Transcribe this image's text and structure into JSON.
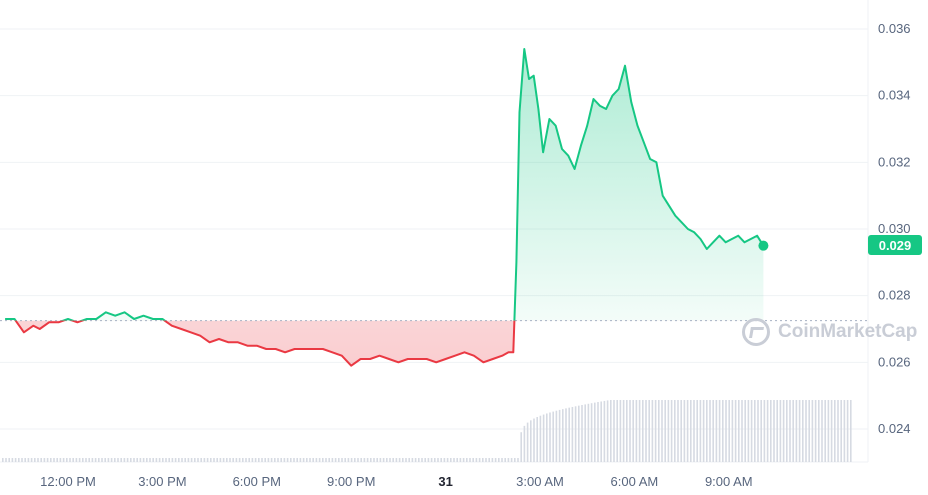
{
  "chart_data": {
    "type": "area",
    "title": "",
    "xlabel": "",
    "ylabel": "",
    "ylim": [
      0.023,
      0.0367
    ],
    "y_ticks": [
      "0.036",
      "0.034",
      "0.032",
      "0.030",
      "0.028",
      "0.026",
      "0.024"
    ],
    "y_tick_values": [
      0.036,
      0.034,
      0.032,
      0.03,
      0.028,
      0.026,
      0.024
    ],
    "x_tick_labels": [
      "12:00 PM",
      "3:00 PM",
      "6:00 PM",
      "9:00 PM",
      "31",
      "3:00 AM",
      "6:00 AM",
      "9:00 AM"
    ],
    "x_tick_hours": [
      12,
      15,
      18,
      21,
      24,
      27,
      30,
      33
    ],
    "x_range_hours": [
      10.0,
      34.2
    ],
    "reference_price": 0.02725,
    "current_price_label": "0.029",
    "current_price": 0.0295,
    "colors": {
      "up": "#16c784",
      "down": "#ea3943"
    },
    "grid": true,
    "series": [
      {
        "hours": [
          10.0,
          10.3,
          10.6,
          10.9,
          11.1,
          11.4,
          11.7,
          12.0,
          12.3,
          12.6,
          12.9,
          13.2,
          13.5,
          13.8,
          14.1,
          14.4,
          14.7,
          15.0,
          15.3,
          15.6,
          15.9,
          16.2,
          16.5,
          16.8,
          17.1,
          17.4,
          17.7,
          18.0,
          18.3,
          18.6,
          18.9,
          19.2,
          19.5,
          19.8,
          20.1,
          20.4,
          20.7,
          21.0,
          21.3,
          21.6,
          21.9,
          22.2,
          22.5,
          22.8,
          23.1,
          23.4,
          23.7,
          24.0,
          24.3,
          24.6,
          24.9,
          25.2,
          25.5,
          25.8,
          26.0,
          26.15,
          26.25,
          26.35,
          26.5,
          26.65,
          26.8,
          26.95,
          27.1,
          27.3,
          27.5,
          27.7,
          27.9,
          28.1,
          28.3,
          28.5,
          28.7,
          28.9,
          29.1,
          29.3,
          29.5,
          29.7,
          29.9,
          30.1,
          30.3,
          30.5,
          30.7,
          30.9,
          31.1,
          31.3,
          31.5,
          31.7,
          31.9,
          32.1,
          32.3,
          32.5,
          32.7,
          32.9,
          33.1,
          33.3,
          33.5,
          33.7,
          33.9,
          34.1
        ],
        "values": [
          0.0273,
          0.0273,
          0.0269,
          0.0271,
          0.027,
          0.0272,
          0.0272,
          0.0273,
          0.0272,
          0.0273,
          0.0273,
          0.0275,
          0.0274,
          0.0275,
          0.0273,
          0.0274,
          0.0273,
          0.0273,
          0.0271,
          0.027,
          0.0269,
          0.0268,
          0.0266,
          0.0267,
          0.0266,
          0.0266,
          0.0265,
          0.0265,
          0.0264,
          0.0264,
          0.0263,
          0.0264,
          0.0264,
          0.0264,
          0.0264,
          0.0263,
          0.0262,
          0.0259,
          0.0261,
          0.0261,
          0.0262,
          0.0261,
          0.026,
          0.0261,
          0.0261,
          0.0261,
          0.026,
          0.0261,
          0.0262,
          0.0263,
          0.0262,
          0.026,
          0.0261,
          0.0262,
          0.0263,
          0.0263,
          0.029,
          0.0335,
          0.0354,
          0.0345,
          0.0346,
          0.0336,
          0.0323,
          0.0333,
          0.0331,
          0.0324,
          0.0322,
          0.0318,
          0.0325,
          0.0331,
          0.0339,
          0.0337,
          0.0336,
          0.034,
          0.0342,
          0.0349,
          0.0338,
          0.0331,
          0.0326,
          0.0321,
          0.032,
          0.031,
          0.0307,
          0.0304,
          0.0302,
          0.03,
          0.0299,
          0.0297,
          0.0294,
          0.0296,
          0.0298,
          0.0296,
          0.0297,
          0.0298,
          0.0296,
          0.0297,
          0.0298,
          0.0295
        ]
      }
    ]
  },
  "watermark": {
    "text": "CoinMarketCap"
  }
}
